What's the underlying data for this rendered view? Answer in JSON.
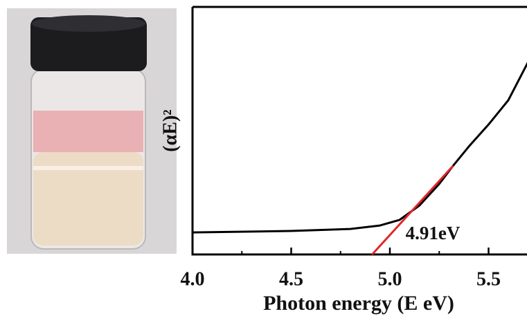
{
  "chart_data": {
    "type": "line",
    "xlabel": "Photon energy (E eV)",
    "ylabel": "(αE)²",
    "annotation": "4.91eV",
    "xlim": [
      4.0,
      5.7
    ],
    "ylim": [
      0,
      1
    ],
    "xticks": [
      {
        "value": 4.0,
        "label": "4.0"
      },
      {
        "value": 4.5,
        "label": "4.5"
      },
      {
        "value": 5.0,
        "label": "5.0"
      },
      {
        "value": 5.5,
        "label": "5.5"
      }
    ],
    "xminorticks": [
      4.25,
      4.75,
      5.25
    ],
    "series": [
      {
        "color": "#000000",
        "x": [
          4.0,
          4.5,
          4.8,
          4.95,
          5.05,
          5.15,
          5.25,
          5.32,
          5.4,
          5.5,
          5.6,
          5.7
        ],
        "values": [
          0.089,
          0.095,
          0.103,
          0.117,
          0.14,
          0.198,
          0.285,
          0.358,
          0.436,
          0.525,
          0.623,
          0.777
        ]
      },
      {
        "color": "#e0262b",
        "x": [
          4.91,
          5.32
        ],
        "values": [
          0,
          0.358
        ]
      }
    ]
  }
}
